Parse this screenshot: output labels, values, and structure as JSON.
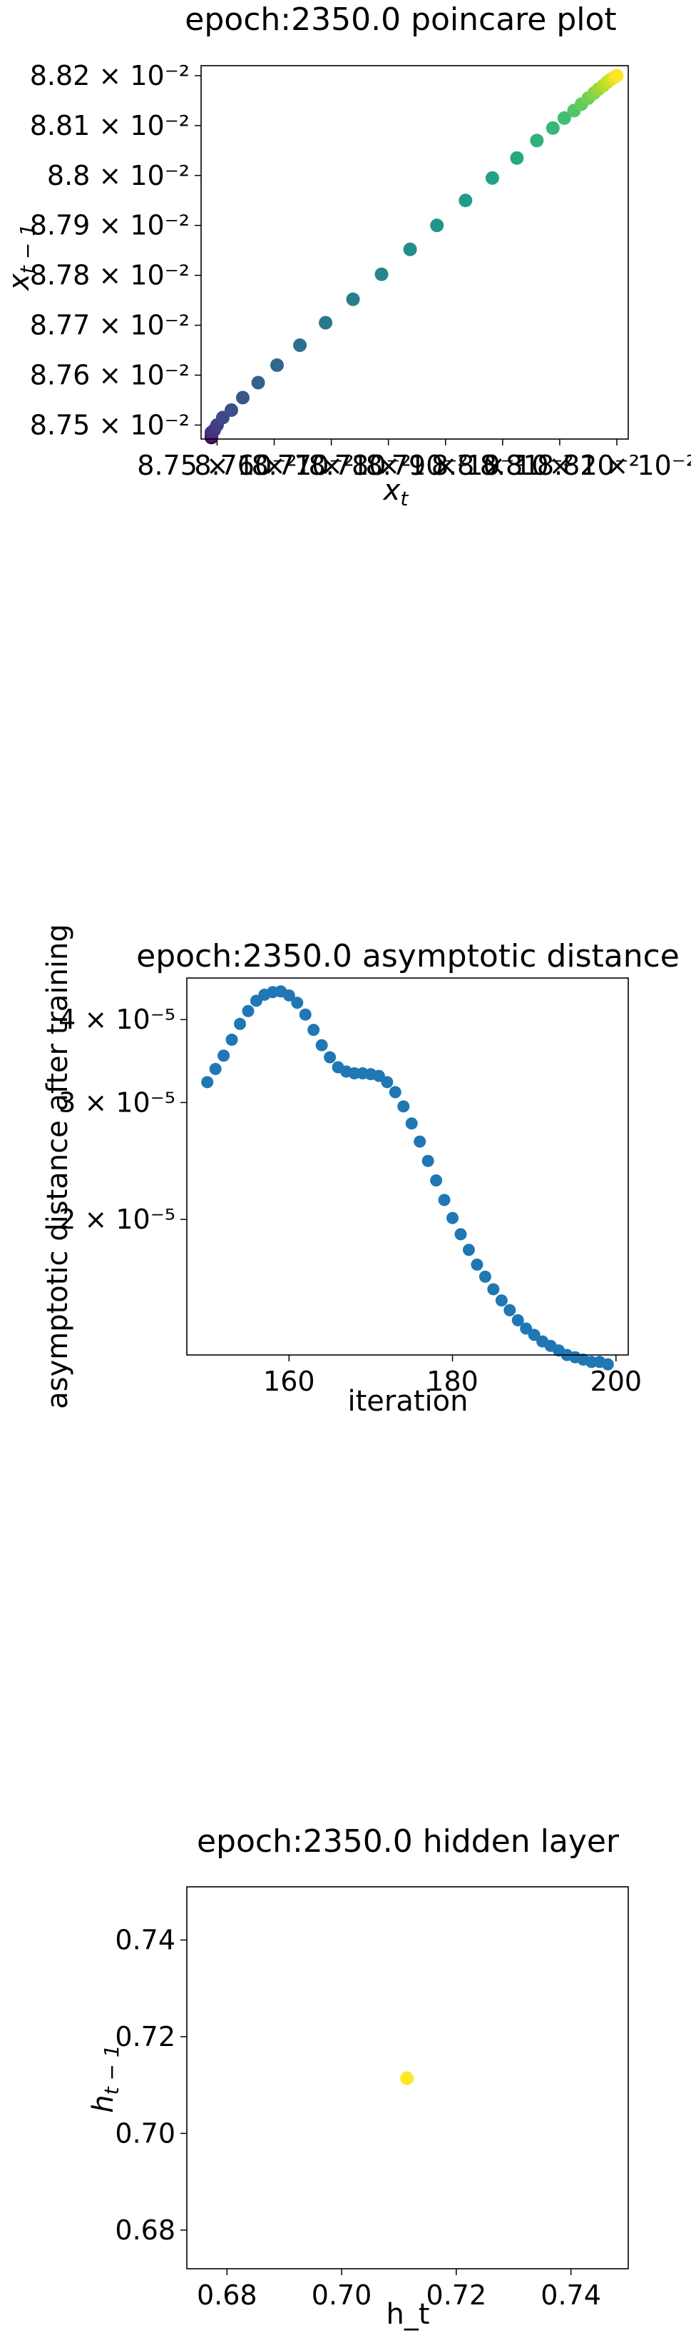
{
  "chart_data": [
    {
      "type": "scatter",
      "title": "epoch:2350.0 poincare plot",
      "xlabel_base": "x",
      "xlabel_sub": "t",
      "ylabel_base": "x",
      "ylabel_sub": "t − 1",
      "xlim": [
        0.087472,
        0.08822
      ],
      "ylim": [
        0.087472,
        0.08822
      ],
      "y_ticks": [
        {
          "value": 0.0875,
          "label": "8.75 × 10⁻²"
        },
        {
          "value": 0.0876,
          "label": "8.76 × 10⁻²"
        },
        {
          "value": 0.0877,
          "label": "8.77 × 10⁻²"
        },
        {
          "value": 0.0878,
          "label": "8.78 × 10⁻²"
        },
        {
          "value": 0.0879,
          "label": "8.79 × 10⁻²"
        },
        {
          "value": 0.088,
          "label": "8.8 × 10⁻²"
        },
        {
          "value": 0.0881,
          "label": "8.81 × 10⁻²"
        },
        {
          "value": 0.0882,
          "label": "8.82 × 10⁻²"
        }
      ],
      "x_ticks": [
        {
          "value": 0.0875,
          "label": "8.75 × 10⁻²"
        },
        {
          "value": 0.0876,
          "label": "8.76 × 10⁻²"
        },
        {
          "value": 0.0877,
          "label": "8.77 × 10⁻²"
        },
        {
          "value": 0.0878,
          "label": "8.78 × 10⁻²"
        },
        {
          "value": 0.0879,
          "label": "8.79 × 10⁻²"
        },
        {
          "value": 0.088,
          "label": "8.8 × 10⁻²"
        },
        {
          "value": 0.0881,
          "label": "8.81 × 10⁻²"
        },
        {
          "value": 0.0882,
          "label": "8.82 × 10⁻²"
        }
      ],
      "colormap": "viridis",
      "x": [
        0.08749,
        0.08749,
        0.08749,
        0.08749,
        0.08749,
        0.087495,
        0.0875,
        0.08751,
        0.087525,
        0.087545,
        0.087572,
        0.087605,
        0.087645,
        0.08769,
        0.087738,
        0.087788,
        0.087838,
        0.087885,
        0.087935,
        0.087982,
        0.088025,
        0.08806,
        0.088088,
        0.088108,
        0.088125,
        0.088138,
        0.08815,
        0.08816,
        0.088168,
        0.088176,
        0.088183,
        0.08819,
        0.088196,
        0.0882
      ],
      "y": [
        0.087475,
        0.087478,
        0.08748,
        0.087482,
        0.087485,
        0.08749,
        0.0875,
        0.087515,
        0.08753,
        0.087555,
        0.087585,
        0.08762,
        0.08766,
        0.087705,
        0.087752,
        0.087802,
        0.087852,
        0.0879,
        0.08795,
        0.087995,
        0.088035,
        0.08807,
        0.088095,
        0.088115,
        0.08813,
        0.088143,
        0.088155,
        0.088165,
        0.088173,
        0.08818,
        0.088187,
        0.088193,
        0.088197,
        0.0882
      ]
    },
    {
      "type": "scatter",
      "title": "epoch:2350.0 asymptotic distance",
      "xlabel": "iteration",
      "ylabel": "asymptotic distance after training",
      "yscale": "log",
      "color": "#1f77b4",
      "xlim": [
        147.5,
        201.5
      ],
      "ylim": [
        1.25e-05,
        4.62e-05
      ],
      "x_ticks": [
        {
          "value": 160,
          "label": "160"
        },
        {
          "value": 180,
          "label": "180"
        },
        {
          "value": 200,
          "label": "200"
        }
      ],
      "y_ticks": [
        {
          "value": 2e-05,
          "label": "2 × 10⁻⁵"
        },
        {
          "value": 3e-05,
          "label": "3 × 10⁻⁵"
        },
        {
          "value": 4e-05,
          "label": "4 × 10⁻⁵"
        }
      ],
      "x": [
        150,
        151,
        152,
        153,
        154,
        155,
        156,
        157,
        158,
        159,
        160,
        161,
        162,
        163,
        164,
        165,
        166,
        167,
        168,
        169,
        170,
        171,
        172,
        173,
        174,
        175,
        176,
        177,
        178,
        179,
        180,
        181,
        182,
        183,
        184,
        185,
        186,
        187,
        188,
        189,
        190,
        191,
        192,
        193,
        194,
        195,
        196,
        197,
        198,
        199
      ],
      "y": [
        3.22e-05,
        3.37e-05,
        3.53e-05,
        3.73e-05,
        3.94e-05,
        4.12e-05,
        4.27e-05,
        4.36e-05,
        4.4e-05,
        4.41e-05,
        4.35e-05,
        4.24e-05,
        4.07e-05,
        3.86e-05,
        3.66e-05,
        3.51e-05,
        3.39e-05,
        3.34e-05,
        3.32e-05,
        3.32e-05,
        3.31e-05,
        3.29e-05,
        3.22e-05,
        3.11e-05,
        2.96e-05,
        2.79e-05,
        2.62e-05,
        2.45e-05,
        2.29e-05,
        2.14e-05,
        2.01e-05,
        1.9e-05,
        1.8e-05,
        1.71e-05,
        1.64e-05,
        1.57e-05,
        1.51e-05,
        1.46e-05,
        1.41e-05,
        1.37e-05,
        1.34e-05,
        1.31e-05,
        1.29e-05,
        1.27e-05,
        1.25e-05,
        1.24e-05,
        1.23e-05,
        1.22e-05,
        1.22e-05,
        1.21e-05
      ]
    },
    {
      "type": "scatter",
      "title": "epoch:2350.0 hidden layer",
      "xlabel": "h_t",
      "ylabel_base": "h",
      "ylabel_sub": "t − 1",
      "color": "#fde725",
      "xlim": [
        0.673,
        0.75
      ],
      "ylim": [
        0.672,
        0.751
      ],
      "x_ticks": [
        {
          "value": 0.68,
          "label": "0.68"
        },
        {
          "value": 0.7,
          "label": "0.70"
        },
        {
          "value": 0.72,
          "label": "0.72"
        },
        {
          "value": 0.74,
          "label": "0.74"
        }
      ],
      "y_ticks": [
        {
          "value": 0.68,
          "label": "0.68"
        },
        {
          "value": 0.7,
          "label": "0.70"
        },
        {
          "value": 0.72,
          "label": "0.72"
        },
        {
          "value": 0.74,
          "label": "0.74"
        }
      ],
      "x": [
        0.7114
      ],
      "y": [
        0.7114
      ]
    }
  ]
}
